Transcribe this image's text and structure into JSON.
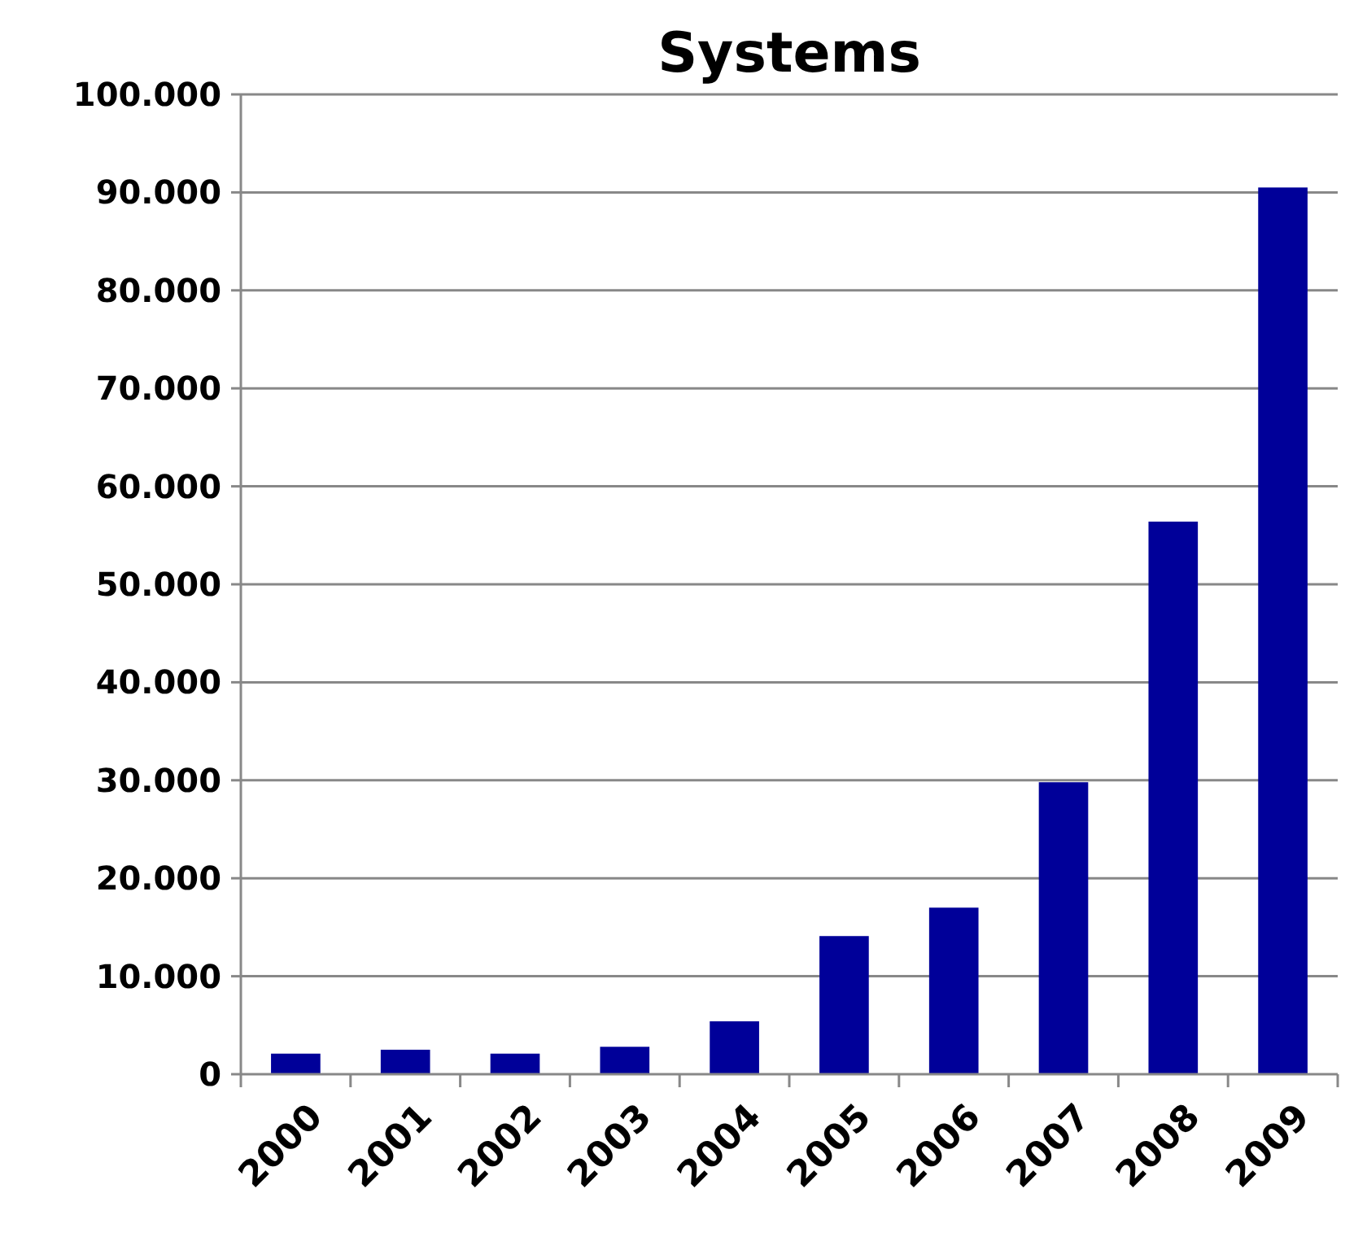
{
  "chart_data": {
    "type": "bar",
    "title": "Systems",
    "categories": [
      "2000",
      "2001",
      "2002",
      "2003",
      "2004",
      "2005",
      "2006",
      "2007",
      "2008",
      "2009"
    ],
    "values": [
      2100,
      2500,
      2100,
      2800,
      5400,
      14100,
      17000,
      29800,
      56400,
      90500
    ],
    "color": "#000099",
    "ylim": [
      0,
      100000
    ],
    "yticks": [
      {
        "value": 0,
        "label": "0"
      },
      {
        "value": 10000,
        "label": "10.000"
      },
      {
        "value": 20000,
        "label": "20.000"
      },
      {
        "value": 30000,
        "label": "30.000"
      },
      {
        "value": 40000,
        "label": "40.000"
      },
      {
        "value": 50000,
        "label": "50.000"
      },
      {
        "value": 60000,
        "label": "60.000"
      },
      {
        "value": 70000,
        "label": "70.000"
      },
      {
        "value": 80000,
        "label": "80.000"
      },
      {
        "value": 90000,
        "label": "90.000"
      },
      {
        "value": 100000,
        "label": "100.000"
      }
    ],
    "grid": "y"
  }
}
